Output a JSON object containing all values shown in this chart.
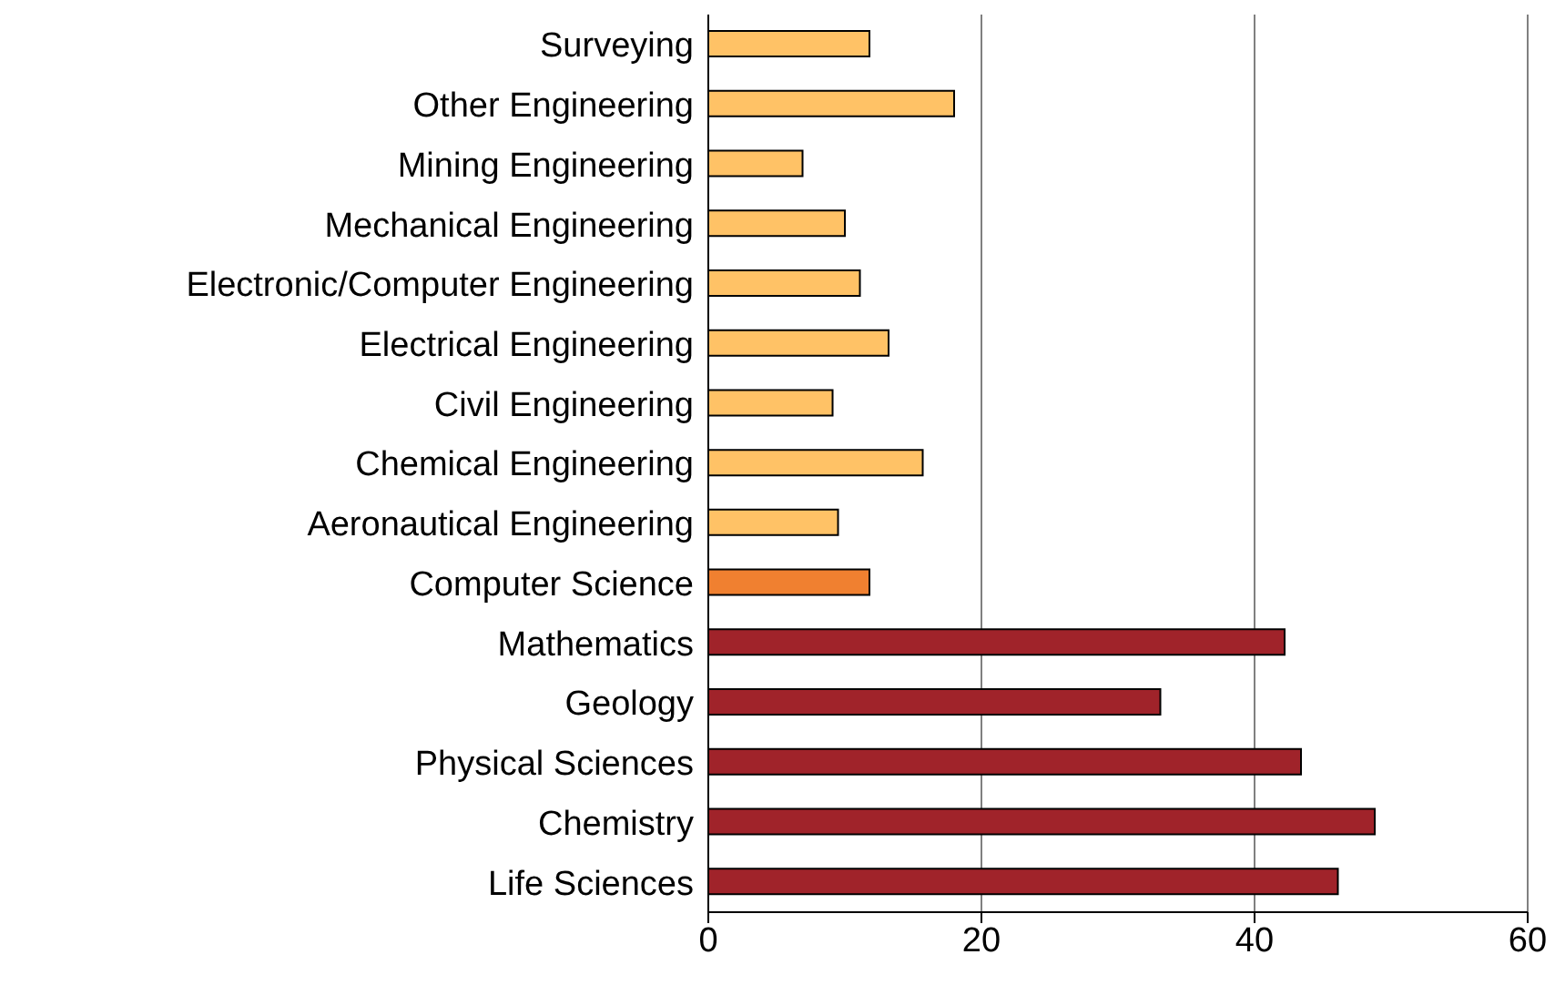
{
  "chart_data": {
    "type": "bar",
    "orientation": "horizontal",
    "categories": [
      "Surveying",
      "Other Engineering",
      "Mining Engineering",
      "Mechanical Engineering",
      "Electronic/Computer Engineering",
      "Electrical Engineering",
      "Civil Engineering",
      "Chemical Engineering",
      "Aeronautical Engineering",
      "Computer Science",
      "Mathematics",
      "Geology",
      "Physical Sciences",
      "Chemistry",
      "Life Sciences"
    ],
    "values": [
      11.8,
      18,
      6.9,
      10,
      11.1,
      13.2,
      9.1,
      15.7,
      9.5,
      11.8,
      42.2,
      33.1,
      43.4,
      48.8,
      46.1
    ],
    "colors": [
      "#ffc266",
      "#ffc266",
      "#ffc266",
      "#ffc266",
      "#ffc266",
      "#ffc266",
      "#ffc266",
      "#ffc266",
      "#ffc266",
      "#f08030",
      "#a0232a",
      "#a0232a",
      "#a0232a",
      "#a0232a",
      "#a0232a"
    ],
    "xlim": [
      0,
      60
    ],
    "xticks": [
      0,
      20,
      40,
      60
    ],
    "grid": "x"
  }
}
